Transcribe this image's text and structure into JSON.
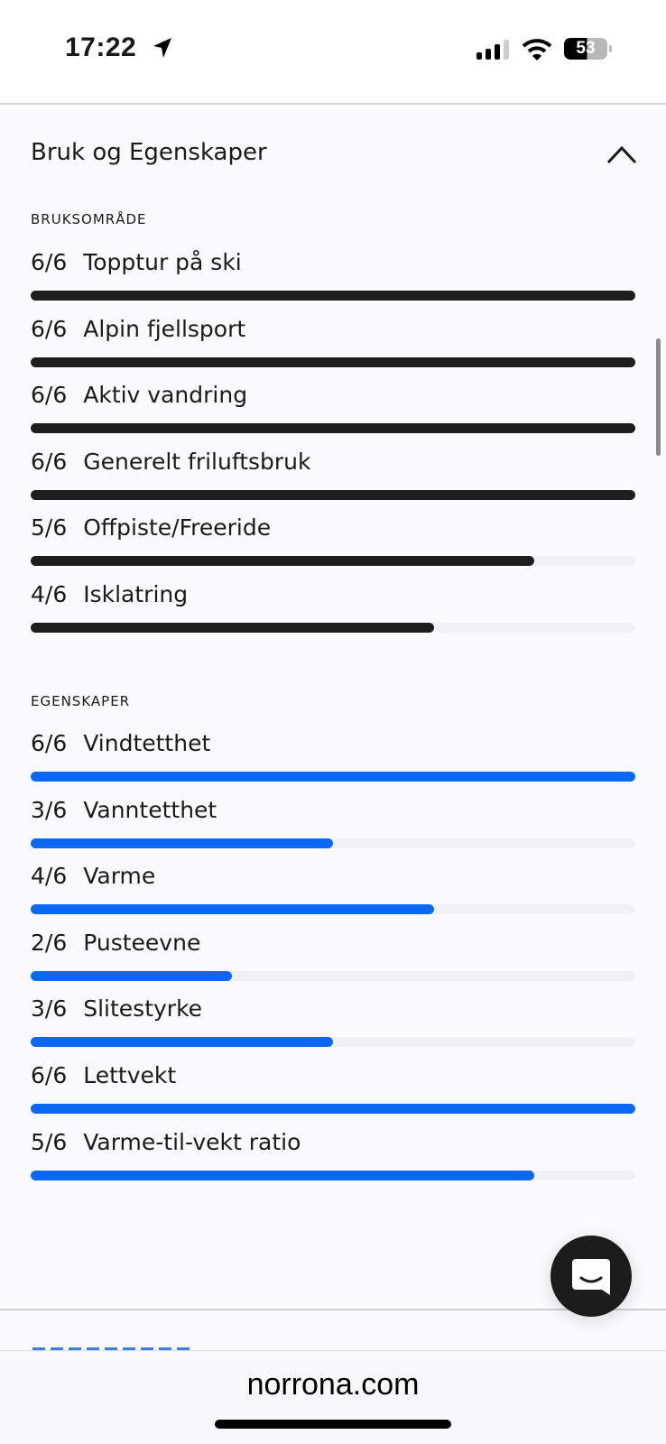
{
  "status_bar": {
    "time": "17:22",
    "battery": "53"
  },
  "section": {
    "title": "Bruk og Egenskaper",
    "expanded": true
  },
  "colors": {
    "usage_bar": "#1e1e1e",
    "property_bar": "#0a68f5",
    "track": "#f1f1f3"
  },
  "usage": {
    "heading": "BRUKSOMRÅDE",
    "items": [
      {
        "score": "6/6",
        "label": "Topptur på ski",
        "value": 6
      },
      {
        "score": "6/6",
        "label": "Alpin fjellsport",
        "value": 6
      },
      {
        "score": "6/6",
        "label": "Aktiv vandring",
        "value": 6
      },
      {
        "score": "6/6",
        "label": "Generelt friluftsbruk",
        "value": 6
      },
      {
        "score": "5/6",
        "label": "Offpiste/Freeride",
        "value": 5
      },
      {
        "score": "4/6",
        "label": "Isklatring",
        "value": 4
      }
    ]
  },
  "properties": {
    "heading": "EGENSKAPER",
    "items": [
      {
        "score": "6/6",
        "label": "Vindtetthet",
        "value": 6
      },
      {
        "score": "3/6",
        "label": "Vanntetthet",
        "value": 3
      },
      {
        "score": "4/6",
        "label": "Varme",
        "value": 4
      },
      {
        "score": "2/6",
        "label": "Pusteevne",
        "value": 2
      },
      {
        "score": "3/6",
        "label": "Slitestyrke",
        "value": 3
      },
      {
        "score": "6/6",
        "label": "Lettvekt",
        "value": 6
      },
      {
        "score": "5/6",
        "label": "Varme-til-vekt ratio",
        "value": 5
      }
    ]
  },
  "max_value": 6,
  "browser": {
    "url": "norrona.com"
  }
}
